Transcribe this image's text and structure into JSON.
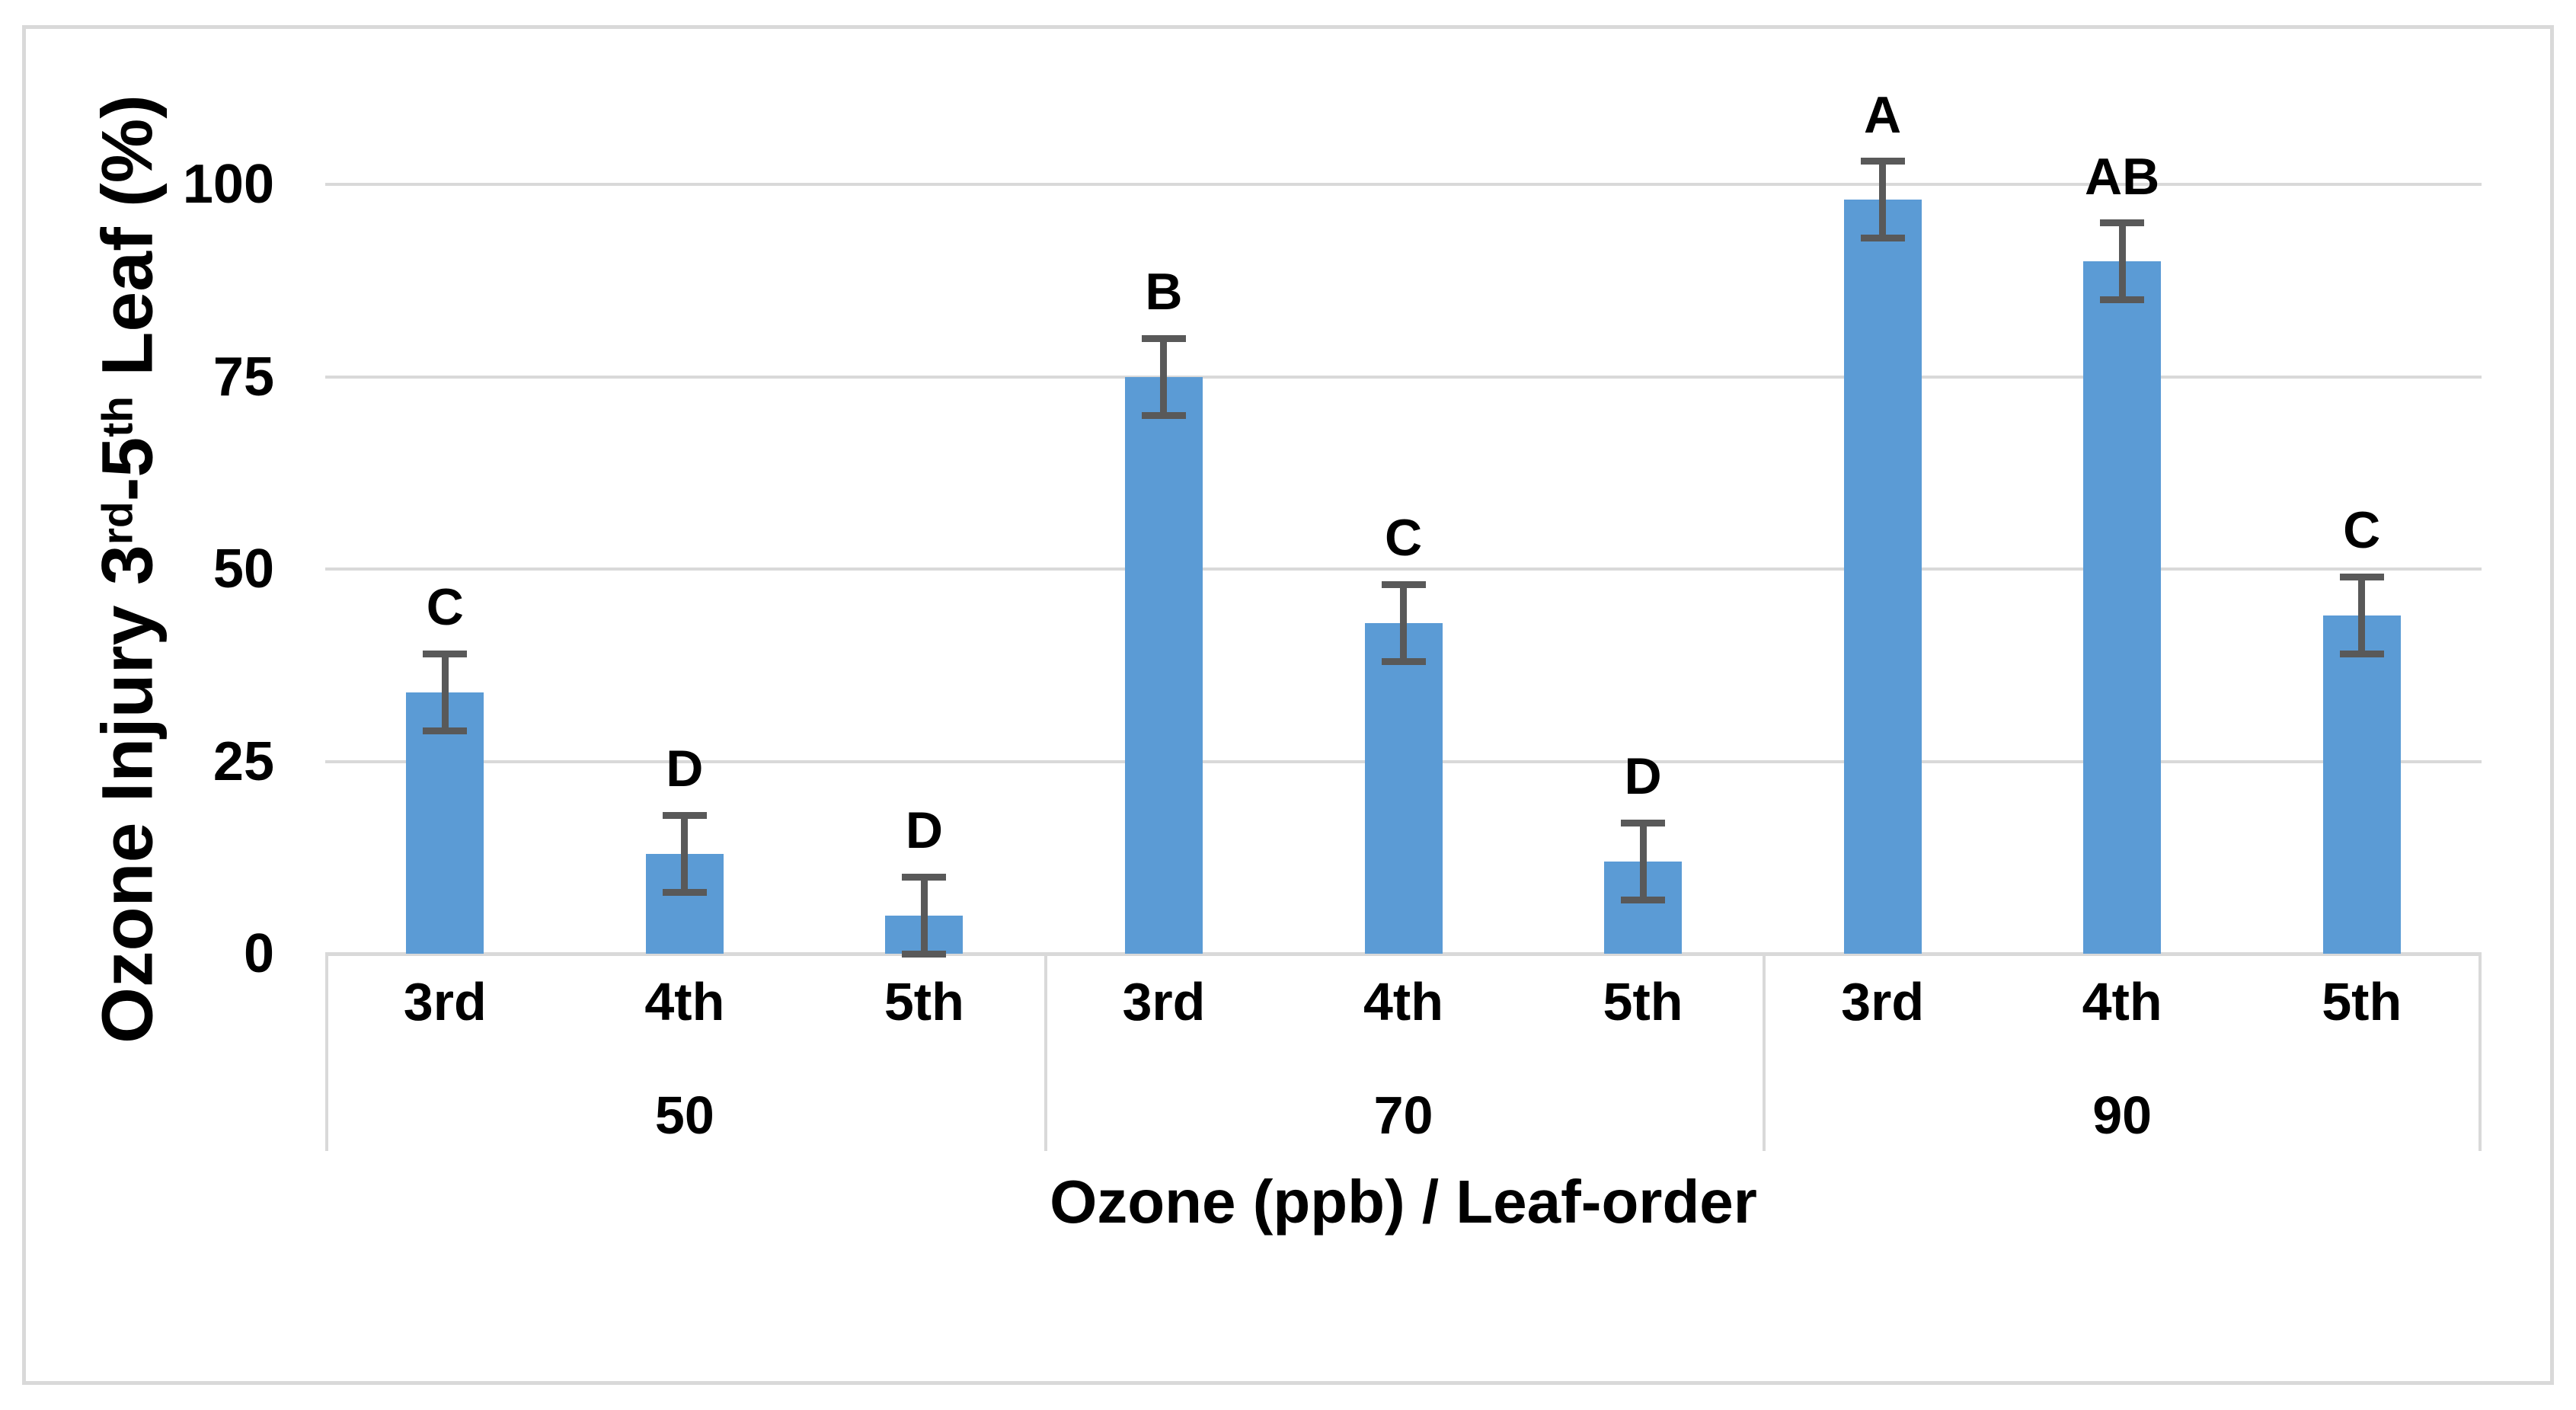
{
  "figure": {
    "background": "#ffffff",
    "border_color": "#d9d9d9"
  },
  "y_axis": {
    "title_prefix": "Ozone Injury 3",
    "title_sup1": "rd",
    "title_mid": "-5",
    "title_sup2": "th",
    "title_suffix": " Leaf (%)",
    "tick_labels": [
      "0",
      "25",
      "50",
      "75",
      "100"
    ]
  },
  "x_axis": {
    "title": "Ozone (ppb) / Leaf-order",
    "group_labels": [
      "50",
      "70",
      "90"
    ],
    "leaf_labels": [
      "3rd",
      "4th",
      "5th"
    ]
  },
  "chart_data": {
    "type": "bar",
    "title": "",
    "ylabel": "Ozone Injury 3rd-5th Leaf (%)",
    "xlabel": "Ozone (ppb) / Leaf-order",
    "ylim": [
      0,
      100
    ],
    "yticks": [
      0,
      25,
      50,
      75,
      100
    ],
    "grid": true,
    "legend": false,
    "bar_color": "#5b9bd5",
    "error_bar_color": "#595959",
    "gridline_color": "#d9d9d9",
    "axis_line_color": "#d9d9d9",
    "groups": [
      {
        "label": "50",
        "bars": [
          {
            "category": "3rd",
            "value": 34,
            "error": 5,
            "letter": "C"
          },
          {
            "category": "4th",
            "value": 13,
            "error": 5,
            "letter": "D"
          },
          {
            "category": "5th",
            "value": 5,
            "error": 5,
            "letter": "D"
          }
        ]
      },
      {
        "label": "70",
        "bars": [
          {
            "category": "3rd",
            "value": 75,
            "error": 5,
            "letter": "B"
          },
          {
            "category": "4th",
            "value": 43,
            "error": 5,
            "letter": "C"
          },
          {
            "category": "5th",
            "value": 12,
            "error": 5,
            "letter": "D"
          }
        ]
      },
      {
        "label": "90",
        "bars": [
          {
            "category": "3rd",
            "value": 98,
            "error": 5,
            "letter": "A"
          },
          {
            "category": "4th",
            "value": 90,
            "error": 5,
            "letter": "AB"
          },
          {
            "category": "5th",
            "value": 44,
            "error": 5,
            "letter": "C"
          }
        ]
      }
    ]
  }
}
